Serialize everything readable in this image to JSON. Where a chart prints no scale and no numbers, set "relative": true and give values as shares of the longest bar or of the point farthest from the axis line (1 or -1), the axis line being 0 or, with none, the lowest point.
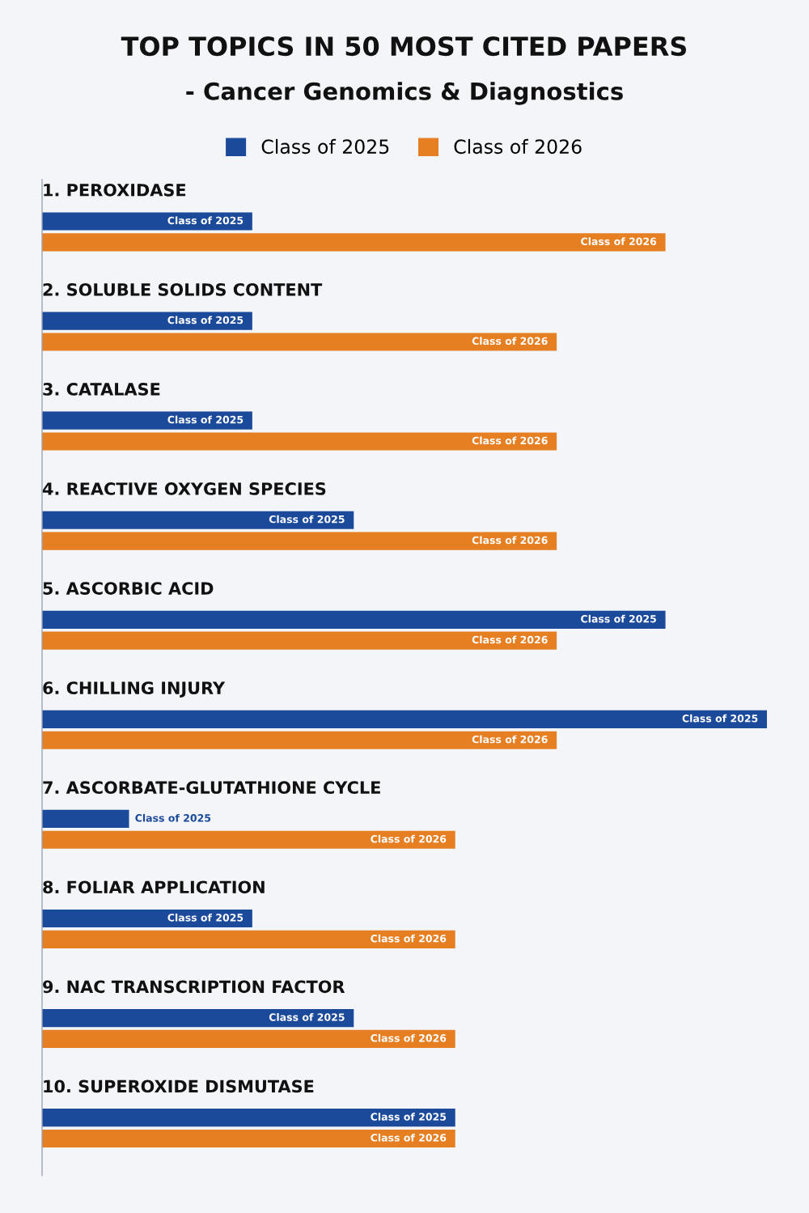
{
  "chart_data": {
    "type": "bar",
    "orientation": "horizontal",
    "relative": true,
    "title": "TOP TOPICS IN 50 MOST CITED PAPERS",
    "subtitle": "- Cancer Genomics & Diagnostics",
    "categories": [
      "1. PEROXIDASE",
      "2. SOLUBLE SOLIDS CONTENT",
      "3. CATALASE",
      "4. REACTIVE OXYGEN SPECIES",
      "5. ASCORBIC ACID",
      "6. CHILLING INJURY",
      "7. ASCORBATE-GLUTATHIONE CYCLE",
      "8. FOLIAR APPLICATION",
      "9. NAC TRANSCRIPTION FACTOR",
      "10. SUPEROXIDE DISMUTASE"
    ],
    "series": [
      {
        "name": "Class of 2025",
        "color": "#1b4a9a",
        "values": [
          0.29,
          0.29,
          0.29,
          0.43,
          0.86,
          1,
          0.12,
          0.29,
          0.43,
          0.57
        ]
      },
      {
        "name": "Class of 2026",
        "color": "#e67e22",
        "values": [
          0.86,
          0.71,
          0.71,
          0.71,
          0.71,
          0.71,
          0.57,
          0.57,
          0.57,
          0.57
        ]
      }
    ],
    "legend": "top"
  }
}
